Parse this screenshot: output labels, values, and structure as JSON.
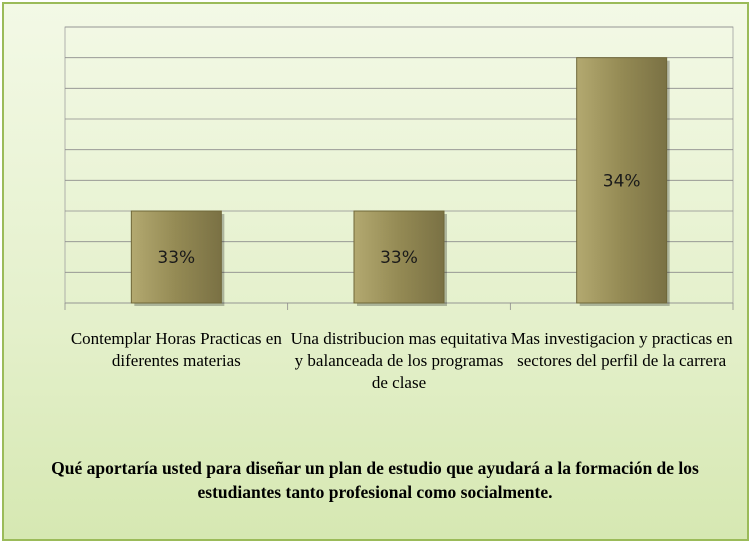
{
  "chart_data": {
    "type": "bar",
    "title": "Qué aportaría usted para diseñar un plan de estudio que ayudará a la formación de los estudiantes tanto profesional como socialmente.",
    "categories": [
      "Contemplar Horas Practicas en diferentes materias",
      "Una distribucion mas equitativa y balanceada de los programas de clase",
      "Mas investigacion y practicas en sectores del perfil de la carrera"
    ],
    "values": [
      33,
      33,
      34
    ],
    "value_labels": [
      "33%",
      "33%",
      "34%"
    ],
    "color": "#948a54",
    "ylim": [
      32.4,
      34.2
    ],
    "yticks": [
      32.4,
      32.6,
      32.8,
      33,
      33.2,
      33.4,
      33.6,
      33.8,
      34,
      34.2
    ],
    "grid": true
  }
}
